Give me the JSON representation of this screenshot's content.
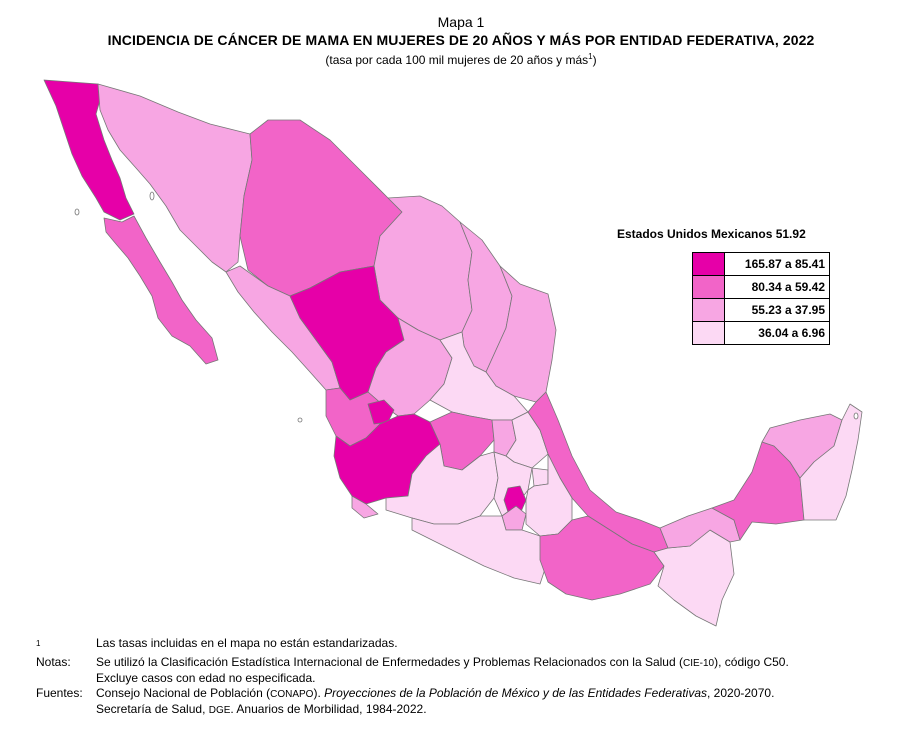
{
  "header": {
    "map_number": "Mapa 1",
    "title": "Incidencia de cáncer de mama en mujeres de 20 años y más por entidad federativa, 2022",
    "title_display": "INCIDENCIA DE CÁNCER DE MAMA EN MUJERES DE 20 AÑOS Y MÁS POR ENTIDAD FEDERATIVA, 2022",
    "subtitle": "(tasa por cada 100 mil mujeres de 20 años y más",
    "subtitle_sup": "1",
    "subtitle_end": ")"
  },
  "legend": {
    "title": "Estados Unidos Mexicanos 51.92",
    "classes": [
      {
        "range": "165.87 a 85.41",
        "color": "#e600a8"
      },
      {
        "range": "80.34 a 59.42",
        "color": "#f264c8"
      },
      {
        "range": "55.23 a 37.95",
        "color": "#f7a6e3"
      },
      {
        "range": "36.04 a 6.96",
        "color": "#fcd9f4"
      }
    ]
  },
  "map": {
    "country": "México",
    "border_color": "#777777",
    "class_colors": [
      "#e600a8",
      "#f264c8",
      "#f7a6e3",
      "#fcd9f4"
    ]
  },
  "notes": {
    "footnote_marker": "1",
    "footnote_text": "Las tasas incluidas en el mapa no están estandarizadas.",
    "notas_label": "Notas:",
    "notas_line1_pre": "Se utilizó la Clasificación Estadística Internacional de Enfermedades y Problemas Relacionados con la Salud (",
    "notas_line1_sc": "CIE-10",
    "notas_line1_post": "), código C50.",
    "notas_line2": "Excluye casos con edad no especificada.",
    "fuentes_label": "Fuentes:",
    "fuentes_line1_pre": "Consejo Nacional de Población (",
    "fuentes_line1_sc": "CONAPO",
    "fuentes_line1_mid": "). ",
    "fuentes_line1_italic": "Proyecciones de la Población de México y de las Entidades Federativas",
    "fuentes_line1_post": ", 2020-2070.",
    "fuentes_line2_pre": "Secretaría de Salud, ",
    "fuentes_line2_sc": "DGE",
    "fuentes_line2_post": ". Anuarios de Morbilidad, 1984-2022."
  }
}
